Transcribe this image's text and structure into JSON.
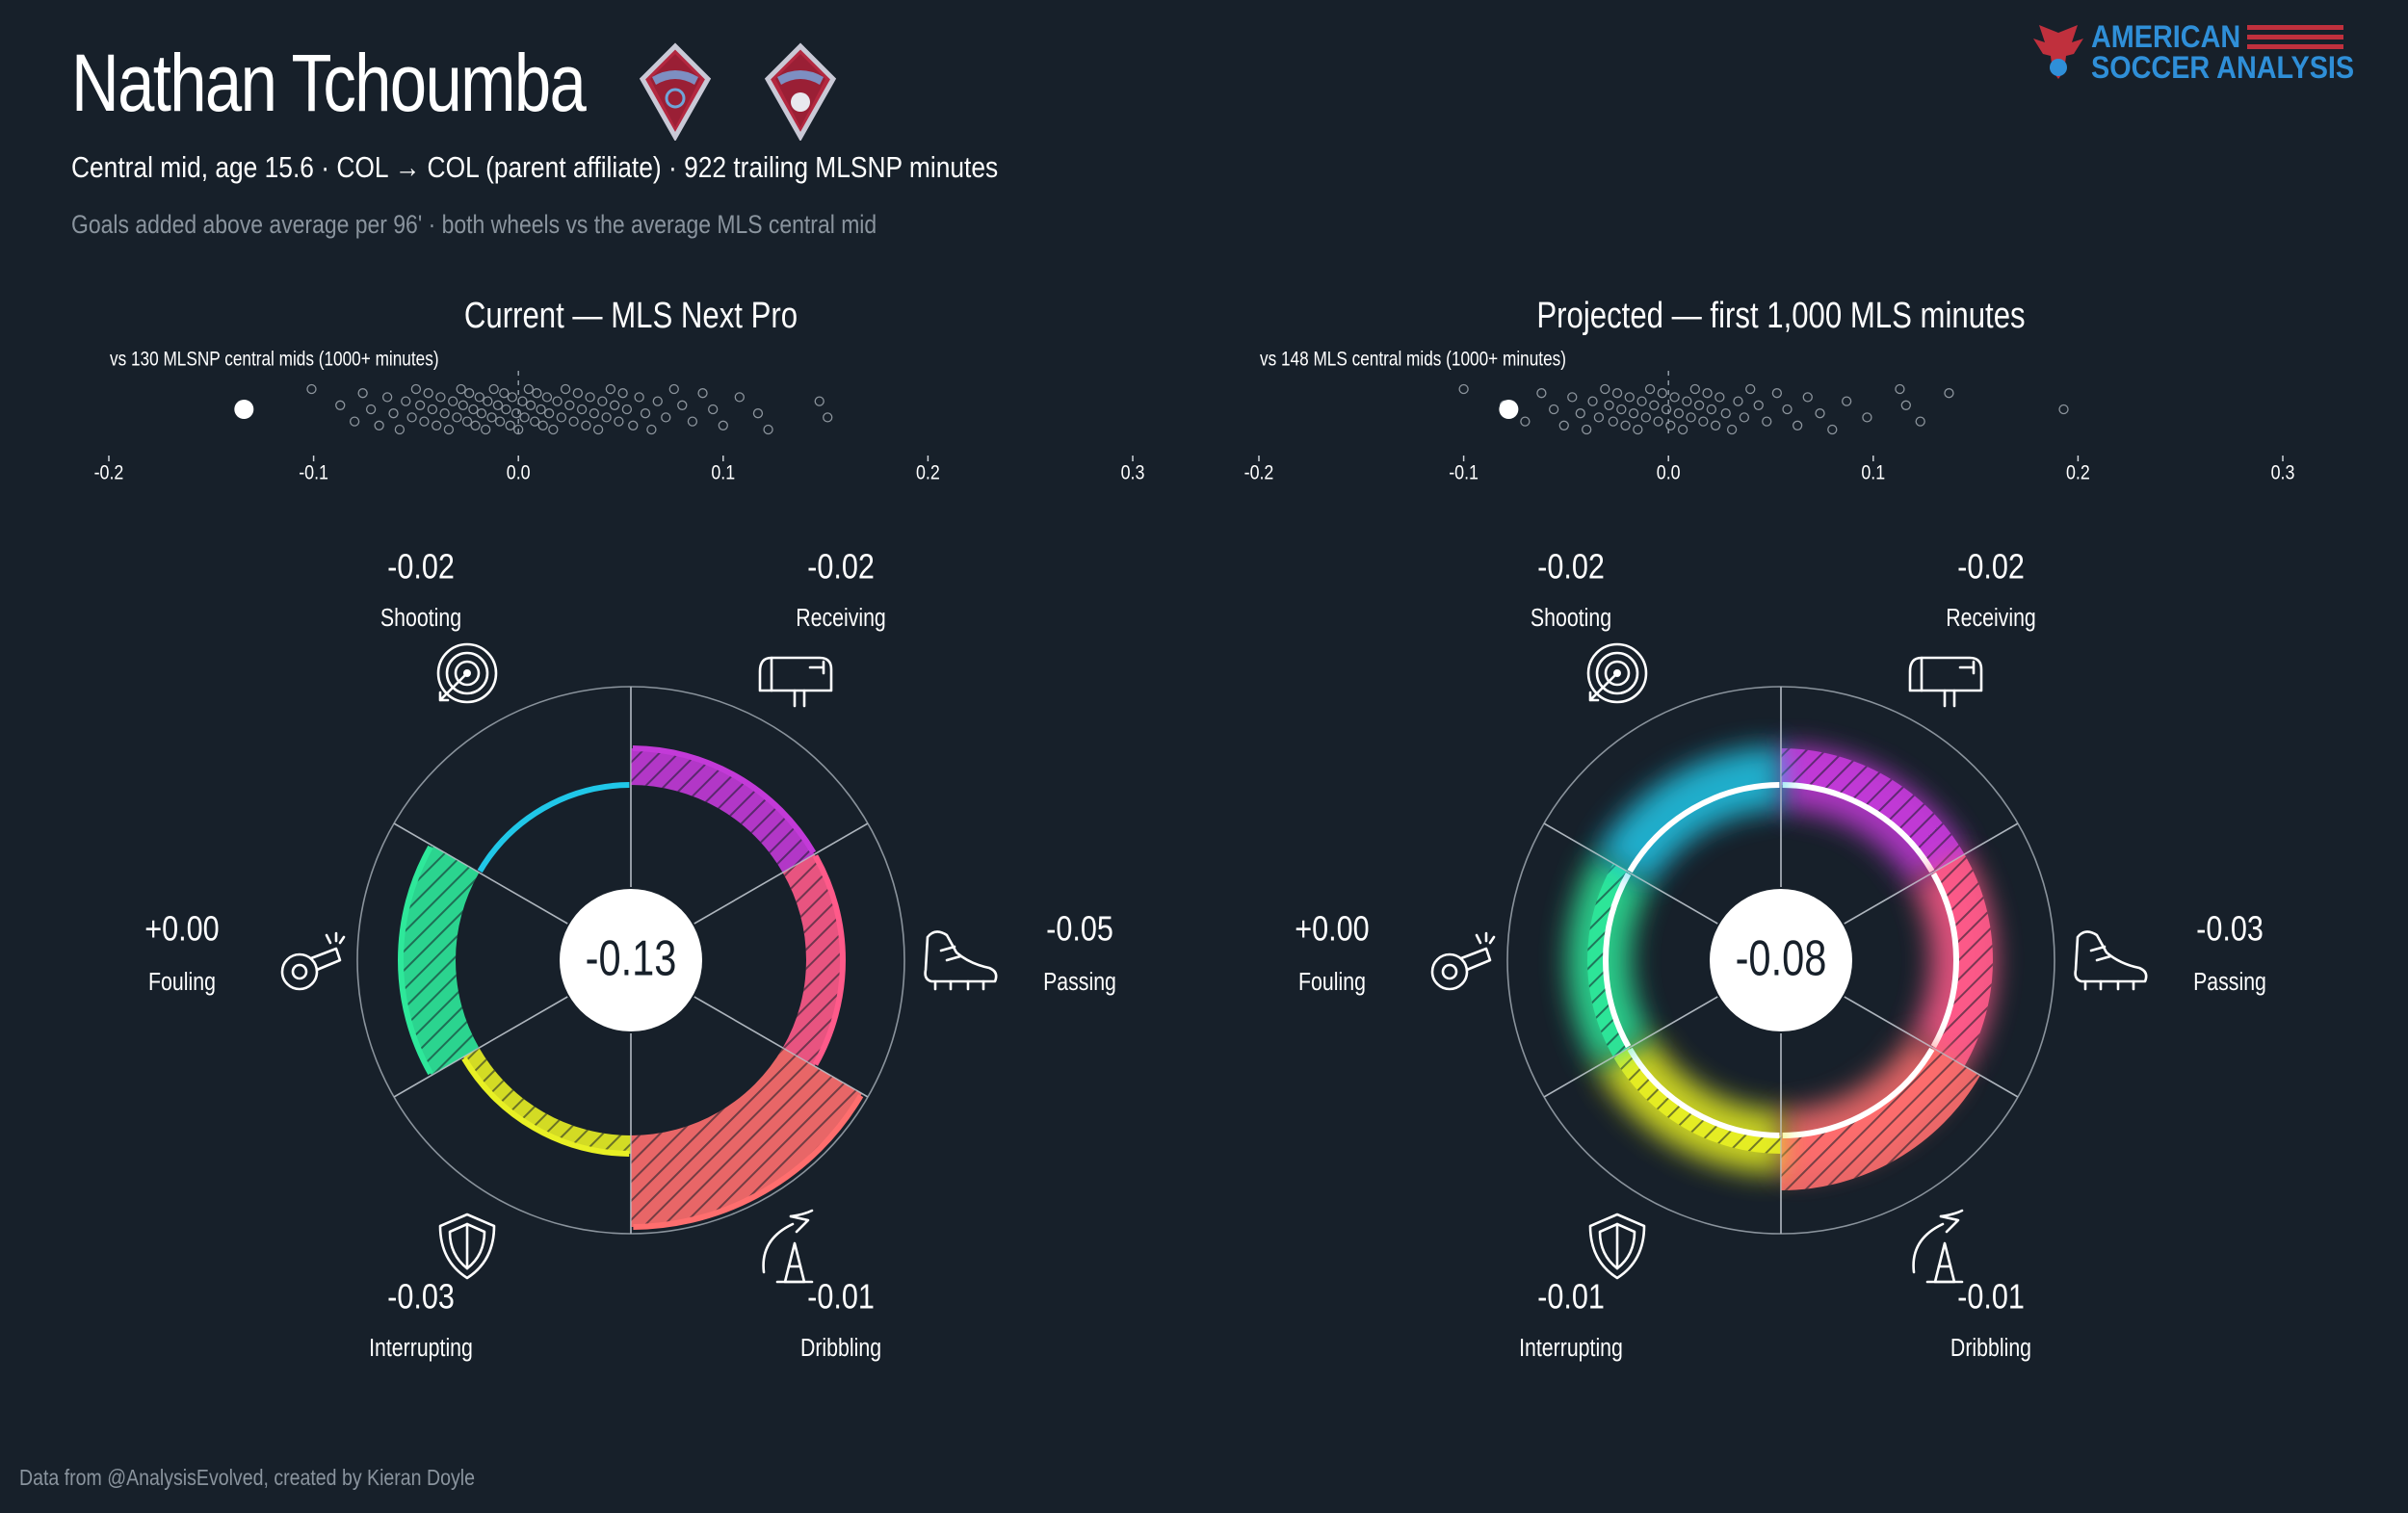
{
  "header": {
    "player_name": "Nathan Tchoumba",
    "subtitle": "Central mid, age 15.6 · COL → COL (parent affiliate) · 922 trailing MLSNP minutes",
    "description": "Goals added above average per 96' · both wheels vs the average MLS central mid"
  },
  "brand": {
    "line1": "AMERICAN",
    "line2": "SOCCER ANALYSIS"
  },
  "footer": "Data from @AnalysisEvolved, created by Kieran Doyle",
  "colors": {
    "background": "#17202a",
    "shooting": "#ff3fa8",
    "receiving": "#ff6e6e",
    "passing": "#ff6e6e",
    "dribbling": "#f5f51e",
    "interrupting": "#2ee89a",
    "fouling": "#20c7e8",
    "shooting_start": "#9b30ff"
  },
  "chart_data": [
    {
      "type": "radial-bar",
      "title": "Current — MLS Next Pro",
      "comparison_label": "vs 130 MLSNP central mids (1000+ minutes)",
      "total_label": "-0.13",
      "total": -0.13,
      "axis": {
        "ticks": [
          "-0.2",
          "-0.1",
          "0.0",
          "0.1",
          "0.2",
          "0.3"
        ],
        "range": [
          -0.2,
          0.3
        ]
      },
      "player_value": -0.134,
      "categories": [
        {
          "name": "Shooting",
          "label": "-0.02",
          "value": -0.02,
          "icon": "target-icon"
        },
        {
          "name": "Receiving",
          "label": "-0.02",
          "value": -0.02,
          "icon": "mailbox-icon"
        },
        {
          "name": "Passing",
          "label": "-0.05",
          "value": -0.05,
          "icon": "cleat-icon"
        },
        {
          "name": "Dribbling",
          "label": "-0.01",
          "value": -0.01,
          "icon": "cone-icon"
        },
        {
          "name": "Interrupting",
          "label": "-0.03",
          "value": -0.03,
          "icon": "shield-icon"
        },
        {
          "name": "Fouling",
          "label": "+0.00",
          "value": 0.0,
          "icon": "whistle-icon"
        }
      ],
      "population": [
        -0.101,
        -0.087,
        -0.08,
        -0.076,
        -0.072,
        -0.068,
        -0.064,
        -0.061,
        -0.058,
        -0.055,
        -0.052,
        -0.05,
        -0.048,
        -0.046,
        -0.044,
        -0.042,
        -0.04,
        -0.038,
        -0.036,
        -0.034,
        -0.032,
        -0.03,
        -0.028,
        -0.027,
        -0.025,
        -0.024,
        -0.022,
        -0.021,
        -0.019,
        -0.018,
        -0.016,
        -0.015,
        -0.013,
        -0.012,
        -0.01,
        -0.009,
        -0.007,
        -0.006,
        -0.004,
        -0.003,
        -0.001,
        0.0,
        0.002,
        0.003,
        0.005,
        0.006,
        0.008,
        0.009,
        0.011,
        0.012,
        0.014,
        0.015,
        0.017,
        0.019,
        0.021,
        0.023,
        0.025,
        0.027,
        0.029,
        0.031,
        0.033,
        0.035,
        0.037,
        0.039,
        0.041,
        0.043,
        0.045,
        0.047,
        0.049,
        0.051,
        0.053,
        0.056,
        0.059,
        0.062,
        0.065,
        0.068,
        0.072,
        0.076,
        0.08,
        0.085,
        0.09,
        0.095,
        0.1,
        0.108,
        0.117,
        0.122,
        0.147,
        0.151
      ]
    },
    {
      "type": "radial-bar",
      "title": "Projected — first 1,000 MLS minutes",
      "comparison_label": "vs 148 MLS central mids (1000+ minutes)",
      "total_label": "-0.08",
      "total": -0.08,
      "axis": {
        "ticks": [
          "-0.2",
          "-0.1",
          "0.0",
          "0.1",
          "0.2",
          "0.3"
        ],
        "range": [
          -0.2,
          0.3
        ]
      },
      "player_value": -0.078,
      "categories": [
        {
          "name": "Shooting",
          "label": "-0.02",
          "value": -0.02,
          "icon": "target-icon"
        },
        {
          "name": "Receiving",
          "label": "-0.02",
          "value": -0.02,
          "icon": "mailbox-icon"
        },
        {
          "name": "Passing",
          "label": "-0.03",
          "value": -0.03,
          "icon": "cleat-icon"
        },
        {
          "name": "Dribbling",
          "label": "-0.01",
          "value": -0.01,
          "icon": "cone-icon"
        },
        {
          "name": "Interrupting",
          "label": "-0.01",
          "value": -0.01,
          "icon": "shield-icon"
        },
        {
          "name": "Fouling",
          "label": "+0.00",
          "value": 0.0,
          "icon": "whistle-icon"
        }
      ],
      "population": [
        -0.1,
        -0.08,
        -0.07,
        -0.062,
        -0.056,
        -0.051,
        -0.047,
        -0.043,
        -0.04,
        -0.037,
        -0.034,
        -0.031,
        -0.029,
        -0.027,
        -0.025,
        -0.023,
        -0.021,
        -0.019,
        -0.017,
        -0.015,
        -0.013,
        -0.011,
        -0.009,
        -0.007,
        -0.005,
        -0.003,
        -0.001,
        0.001,
        0.003,
        0.005,
        0.007,
        0.009,
        0.011,
        0.013,
        0.015,
        0.017,
        0.019,
        0.021,
        0.023,
        0.025,
        0.028,
        0.031,
        0.034,
        0.037,
        0.04,
        0.044,
        0.048,
        0.053,
        0.058,
        0.063,
        0.068,
        0.074,
        0.08,
        0.087,
        0.097,
        0.113,
        0.116,
        0.123,
        0.137,
        0.193
      ]
    }
  ]
}
